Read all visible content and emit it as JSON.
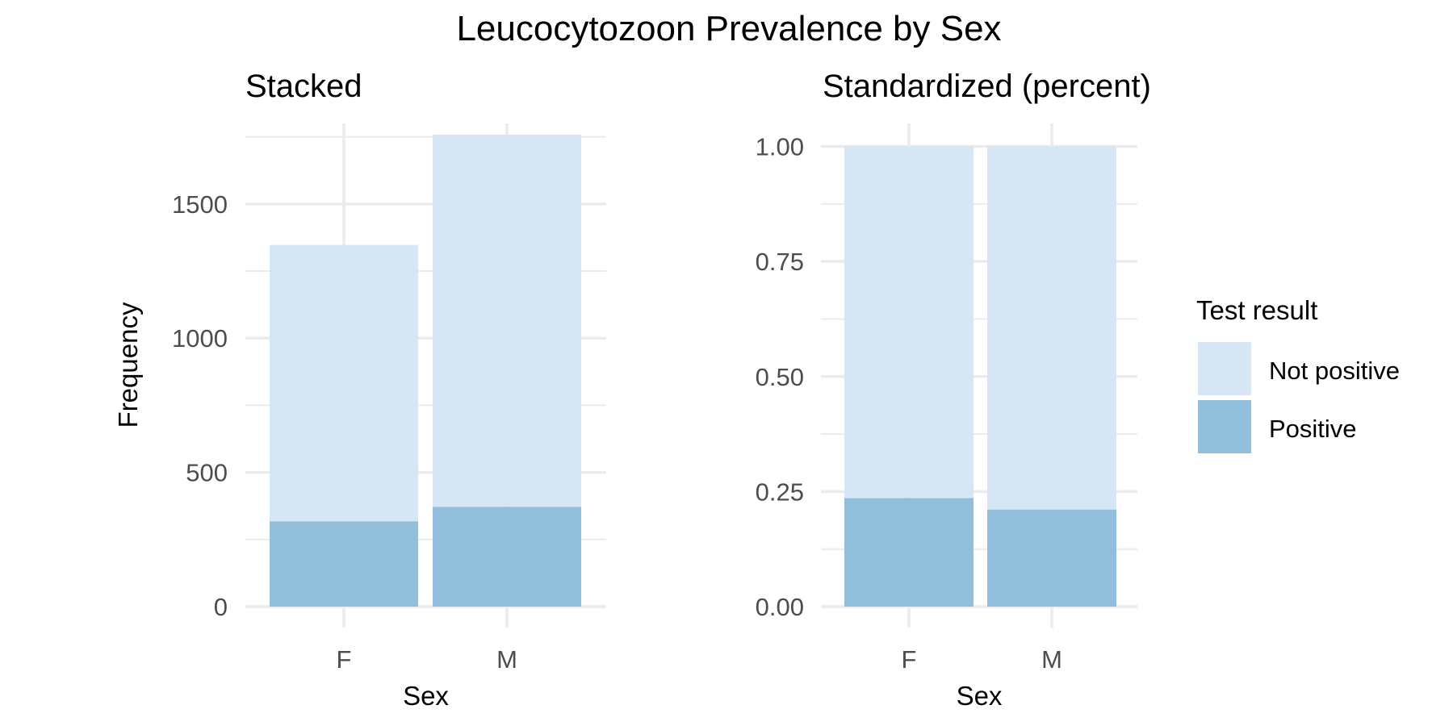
{
  "title": "Leucocytozoon Prevalence by Sex",
  "colors": {
    "Not positive": "#d6e6f4",
    "Positive": "#91bfdb",
    "grid": "#ebebeb",
    "tick_text": "#4d4d4d"
  },
  "legend": {
    "title": "Test result",
    "placement": "right",
    "entries": [
      "Not positive",
      "Positive"
    ]
  },
  "chart_data": [
    {
      "type": "bar",
      "stacked": true,
      "title": "Stacked",
      "xlabel": "Sex",
      "ylabel": "Frequency",
      "categories": [
        "F",
        "M"
      ],
      "series": [
        {
          "name": "Positive",
          "values": [
            318,
            372
          ]
        },
        {
          "name": "Not positive",
          "values": [
            1029,
            1386
          ]
        }
      ],
      "ylim": [
        0,
        1800
      ],
      "yticks": [
        0,
        500,
        1000,
        1500
      ],
      "ytick_labels": [
        "0",
        "500",
        "1000",
        "1500"
      ],
      "grid": true
    },
    {
      "type": "bar",
      "stacked": true,
      "title": "Standardized (percent)",
      "xlabel": "Sex",
      "ylabel": "",
      "categories": [
        "F",
        "M"
      ],
      "series": [
        {
          "name": "Positive",
          "values": [
            0.236,
            0.211
          ]
        },
        {
          "name": "Not positive",
          "values": [
            0.764,
            0.789
          ]
        }
      ],
      "ylim": [
        0,
        1.05
      ],
      "yticks": [
        0,
        0.25,
        0.5,
        0.75,
        1.0
      ],
      "ytick_labels": [
        "0.00",
        "0.25",
        "0.50",
        "0.75",
        "1.00"
      ],
      "grid": true
    }
  ]
}
